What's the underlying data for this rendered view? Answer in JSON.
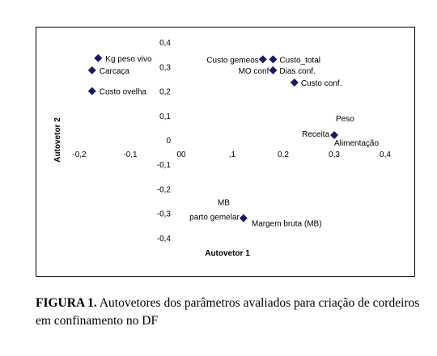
{
  "chart_data": {
    "type": "scatter",
    "title": "",
    "xlabel": "Autovetor 1",
    "ylabel": "Autovetor 2",
    "xlim": [
      -0.2,
      0.4
    ],
    "ylim": [
      -0.4,
      0.4
    ],
    "grid": false,
    "marker": "diamond",
    "marker_color": "#1c1a5e",
    "x_tick_labels": [
      "-0,2",
      "-0,1",
      "00",
      ",1",
      "0,2",
      "0,3",
      "0,4"
    ],
    "y_tick_labels": [
      "0,4",
      "0,3",
      "0,2",
      "0,1",
      "0",
      "-0,1",
      "-0,2",
      "-0,3",
      "-0,4"
    ],
    "points": [
      {
        "x": -0.163,
        "y": 0.335,
        "label": "Kg peso vivo"
      },
      {
        "x": -0.175,
        "y": 0.285,
        "label": "Carcaça"
      },
      {
        "x": -0.175,
        "y": 0.2,
        "label": "Custo ovelha"
      },
      {
        "x": 0.16,
        "y": 0.33,
        "label": "Custo gemeos"
      },
      {
        "x": 0.18,
        "y": 0.33,
        "label": "Custo_total"
      },
      {
        "x": 0.18,
        "y": 0.285,
        "label": "MO conf"
      },
      {
        "x": 0.18,
        "y": 0.285,
        "label": "Dias conf."
      },
      {
        "x": 0.222,
        "y": 0.235,
        "label": "Custo conf."
      },
      {
        "x": 0.3,
        "y": 0.02,
        "label": "Receita"
      },
      {
        "x": 0.3,
        "y": 0.02,
        "label": "Peso"
      },
      {
        "x": 0.3,
        "y": 0.02,
        "label": "Alimentação"
      },
      {
        "x": 0.122,
        "y": -0.32,
        "label": "MB"
      },
      {
        "x": 0.122,
        "y": -0.32,
        "label": "parto gemelar"
      },
      {
        "x": 0.122,
        "y": -0.32,
        "label": "Margem bruta (MB)"
      }
    ]
  },
  "caption": {
    "label": "FIGURA 1.",
    "text": " Autovetores dos parâmetros avaliados para criação de cordeiros em confinamento no DF"
  }
}
